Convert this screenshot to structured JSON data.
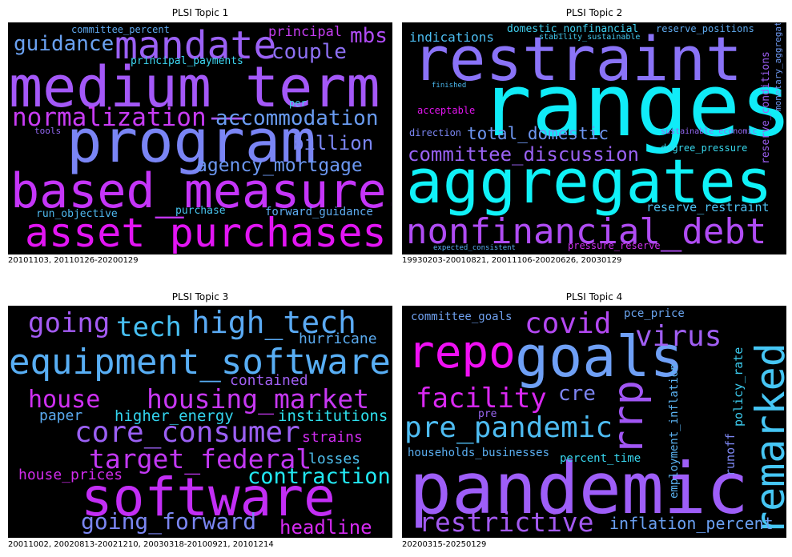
{
  "panels": [
    {
      "title": "PLSI Topic 1",
      "caption": "20101103, 20110126-20200129",
      "words": [
        {
          "text": "medium_term",
          "color": "#a458f8"
        },
        {
          "text": "program",
          "color": "#7a85f5"
        },
        {
          "text": "based_measures",
          "color": "#c535f9"
        },
        {
          "text": "asset_purchases",
          "color": "#e215f3"
        },
        {
          "text": "mandate",
          "color": "#9b61f5"
        },
        {
          "text": "normalization",
          "color": "#c83cf4"
        },
        {
          "text": "accommodation",
          "color": "#6a9cf2"
        },
        {
          "text": "guidance",
          "color": "#6aa1f1"
        },
        {
          "text": "couple",
          "color": "#8d70f4"
        },
        {
          "text": "mbs",
          "color": "#b04cf5"
        },
        {
          "text": "billion",
          "color": "#7b86f2"
        },
        {
          "text": "agency_mortgage",
          "color": "#6c98f2"
        },
        {
          "text": "principal",
          "color": "#c43df0"
        },
        {
          "text": "committee_percent",
          "color": "#5fa8ee"
        },
        {
          "text": "principal_payments",
          "color": "#3cd3ee"
        },
        {
          "text": "forward_guidance",
          "color": "#5eacf0"
        },
        {
          "text": "purchase",
          "color": "#48c4ee"
        },
        {
          "text": "run_objective",
          "color": "#4fb8ee"
        },
        {
          "text": "tools",
          "color": "#9368f2"
        },
        {
          "text": "per",
          "color": "#3dd6ee"
        }
      ]
    },
    {
      "title": "PLSI Topic 2",
      "caption": "19930203-20010821, 20011106-20020626, 20030129",
      "words": [
        {
          "text": "restraint",
          "color": "#8a73f7"
        },
        {
          "text": "ranges",
          "color": "#10ecf8"
        },
        {
          "text": "aggregates",
          "color": "#10f2f8"
        },
        {
          "text": "nonfinancial_debt",
          "color": "#b04cf4"
        },
        {
          "text": "committee_discussion",
          "color": "#9a62f4"
        },
        {
          "text": "total_domestic",
          "color": "#6e97f2"
        },
        {
          "text": "indications",
          "color": "#4cbdf0"
        },
        {
          "text": "domestic_nonfinancial",
          "color": "#3fcfee"
        },
        {
          "text": "stability_sustainable",
          "color": "#42c9ee"
        },
        {
          "text": "reserve_positions",
          "color": "#5ea9ee"
        },
        {
          "text": "reserve_restraint",
          "color": "#4ec0f0"
        },
        {
          "text": "degree_pressure",
          "color": "#38d9ee"
        },
        {
          "text": "direction",
          "color": "#7b86f2"
        },
        {
          "text": "acceptable",
          "color": "#e114ee"
        },
        {
          "text": "finished",
          "color": "#4ab7ee"
        },
        {
          "text": "sustainable_economic",
          "color": "#9368f2"
        },
        {
          "text": "pressure_reserve",
          "color": "#cc30ee"
        },
        {
          "text": "expected_consistent",
          "color": "#5aaeee"
        },
        {
          "text": "reserve_conditions",
          "color": "#9c5ef2"
        },
        {
          "text": "monetary_aggregates",
          "color": "#6d98f0"
        }
      ]
    },
    {
      "title": "PLSI Topic 3",
      "caption": "20011002, 20020813-20021210, 20030318-20100921, 20101214",
      "words": [
        {
          "text": "software",
          "color": "#c32ef5"
        },
        {
          "text": "equipment_software",
          "color": "#58aef4"
        },
        {
          "text": "high_tech",
          "color": "#5aaaf4"
        },
        {
          "text": "tech",
          "color": "#47c0f2"
        },
        {
          "text": "going",
          "color": "#a45bf4"
        },
        {
          "text": "hurricane",
          "color": "#5aaaee"
        },
        {
          "text": "contained",
          "color": "#a05ff2"
        },
        {
          "text": "house",
          "color": "#cf30f2"
        },
        {
          "text": "housing_market",
          "color": "#c738f3"
        },
        {
          "text": "paper",
          "color": "#5aaaf0"
        },
        {
          "text": "higher_energy",
          "color": "#33d4ee"
        },
        {
          "text": "institutions",
          "color": "#2ee0ee"
        },
        {
          "text": "core_consumer",
          "color": "#9b60f4"
        },
        {
          "text": "strains",
          "color": "#cf2cee"
        },
        {
          "text": "target_federal",
          "color": "#c238f4"
        },
        {
          "text": "losses",
          "color": "#4ec0ee"
        },
        {
          "text": "house_prices",
          "color": "#d22cee"
        },
        {
          "text": "contraction",
          "color": "#22e8f2"
        },
        {
          "text": "going_forward",
          "color": "#7b86f2"
        },
        {
          "text": "headline",
          "color": "#d52af2"
        }
      ]
    },
    {
      "title": "PLSI Topic 4",
      "caption": "20200315-20250129",
      "words": [
        {
          "text": "pandemic",
          "color": "#9e5ef8"
        },
        {
          "text": "goals",
          "color": "#6fa0f6"
        },
        {
          "text": "repo",
          "color": "#f010f4"
        },
        {
          "text": "remarked",
          "color": "#46c6f4"
        },
        {
          "text": "rrp",
          "color": "#a156f4"
        },
        {
          "text": "covid",
          "color": "#b448f2"
        },
        {
          "text": "virus",
          "color": "#a05ef2"
        },
        {
          "text": "facility",
          "color": "#da28f2"
        },
        {
          "text": "cre",
          "color": "#7c84f2"
        },
        {
          "text": "pre_pandemic",
          "color": "#4ebcf2"
        },
        {
          "text": "restrictive",
          "color": "#a45af2"
        },
        {
          "text": "inflation_percent",
          "color": "#6aa0f2"
        },
        {
          "text": "committee_goals",
          "color": "#6fa0ee"
        },
        {
          "text": "pce_price",
          "color": "#6aa4ee"
        },
        {
          "text": "pre",
          "color": "#9a66f0"
        },
        {
          "text": "households_businesses",
          "color": "#5aaef0"
        },
        {
          "text": "percent_time",
          "color": "#38d6ee"
        },
        {
          "text": "employment_inflation",
          "color": "#5ab0ee"
        },
        {
          "text": "policy_rate",
          "color": "#3ccbee"
        },
        {
          "text": "runoff",
          "color": "#7c86f0"
        }
      ]
    }
  ]
}
